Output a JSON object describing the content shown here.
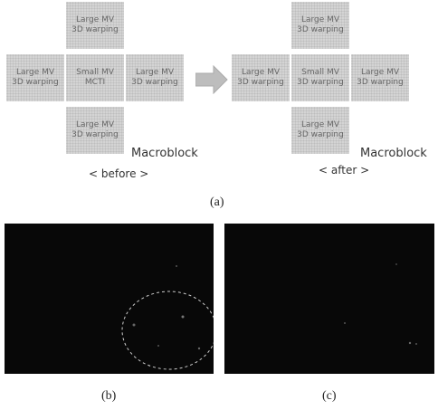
{
  "figure": {
    "panel_a": {
      "before": {
        "cells": [
          {
            "lines": [
              "Large MV",
              "3D warping"
            ]
          },
          {
            "lines": [
              "Large MV",
              "3D warping"
            ]
          },
          {
            "lines": [
              "Small MV",
              "MCTI"
            ]
          },
          {
            "lines": [
              "Large MV",
              "3D warping"
            ]
          },
          {
            "lines": [
              "Large MV",
              "3D warping"
            ]
          }
        ],
        "label": "Macroblock",
        "caption": "< before >"
      },
      "after": {
        "cells": [
          {
            "lines": [
              "Large MV",
              "3D warping"
            ]
          },
          {
            "lines": [
              "Large MV",
              "3D warping"
            ]
          },
          {
            "lines": [
              "Small MV",
              "3D warping"
            ]
          },
          {
            "lines": [
              "Large MV",
              "3D warping"
            ]
          },
          {
            "lines": [
              "Large MV",
              "3D warping"
            ]
          }
        ],
        "label": "Macroblock",
        "caption": "< after >"
      },
      "caption": "(a)"
    },
    "panel_b": {
      "caption": "(b)"
    },
    "panel_c": {
      "caption": "(c)"
    }
  }
}
